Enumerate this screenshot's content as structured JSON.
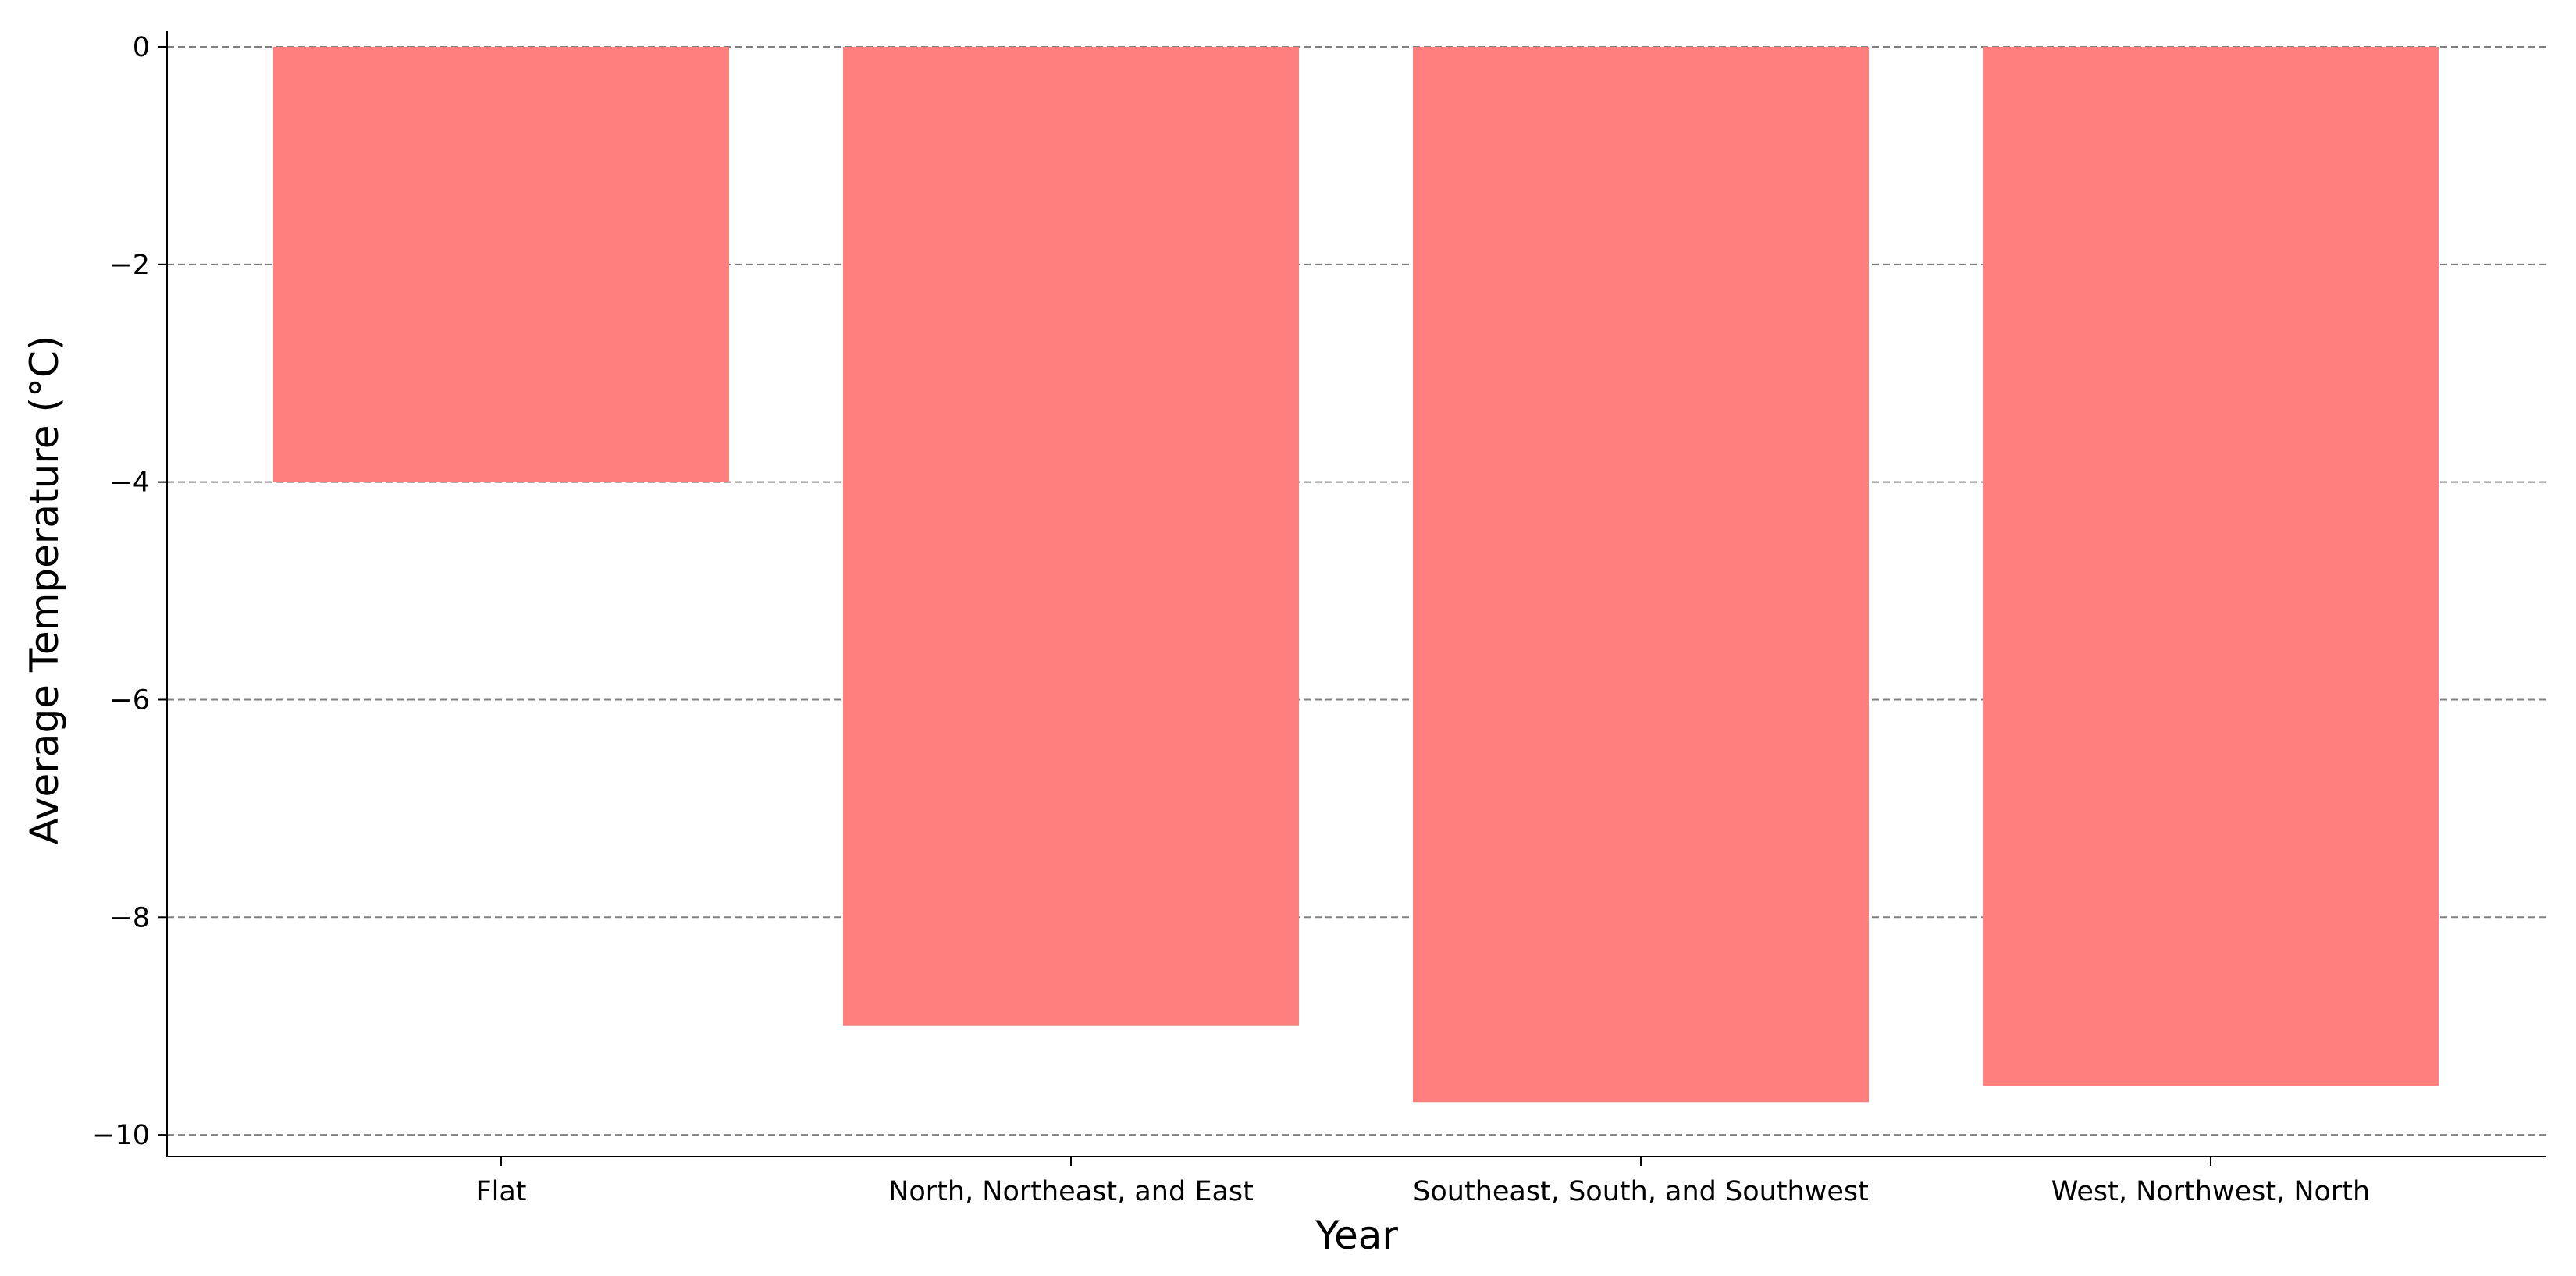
{
  "chart_data": {
    "type": "bar",
    "title": "",
    "xlabel": "Year",
    "ylabel": "Average Temperature (°C)",
    "categories": [
      "Flat",
      "North, Northeast, and East",
      "Southeast, South, and Southwest",
      "West, Northwest, North"
    ],
    "values": [
      -4.0,
      -9.0,
      -9.7,
      -9.55
    ],
    "ylim": [
      -10.2,
      0
    ],
    "yticks": [
      0,
      -2,
      -4,
      -6,
      -8,
      -10
    ],
    "ytick_labels": [
      "0",
      "−2",
      "−4",
      "−6",
      "−8",
      "−10"
    ],
    "grid": "horizontal dashed",
    "bar_color": "#ff7f7f",
    "grid_color": "#808080",
    "axis_color": "#000000"
  }
}
